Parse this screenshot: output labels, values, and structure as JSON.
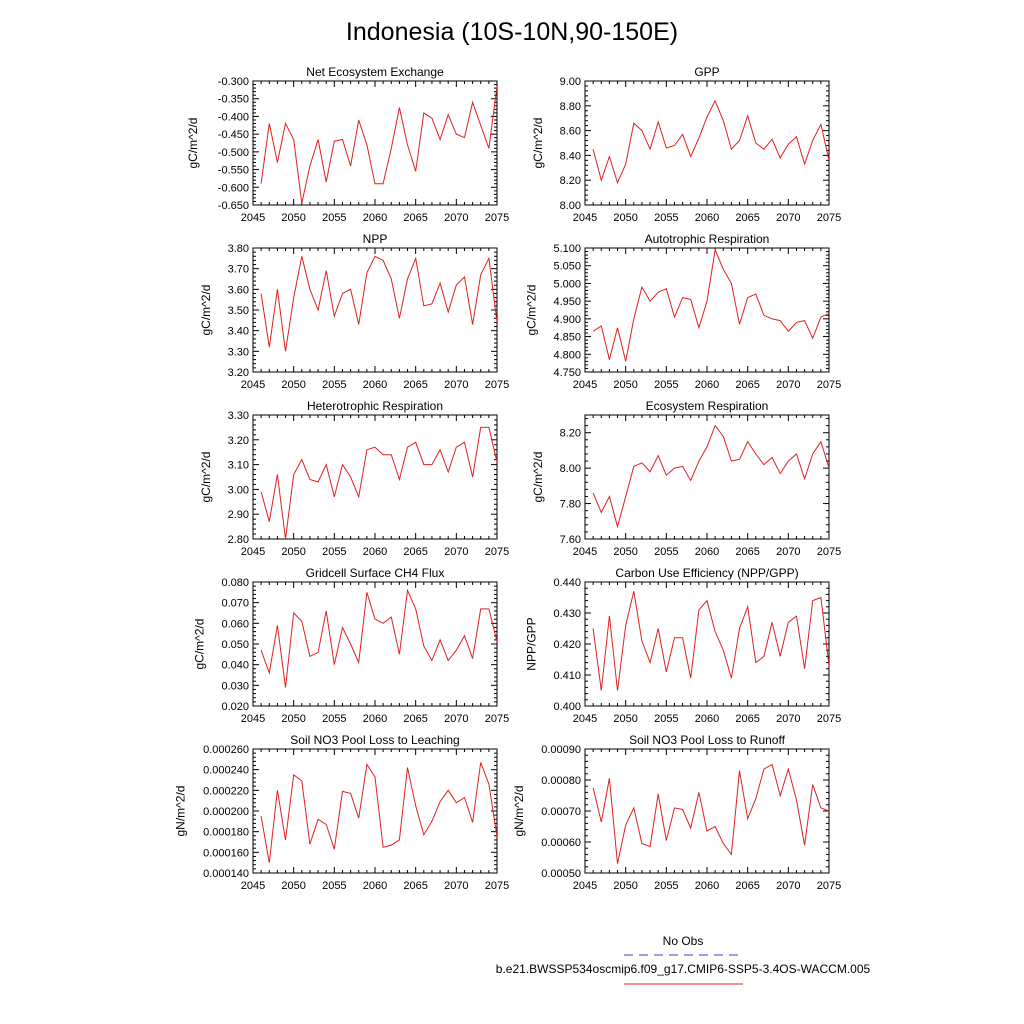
{
  "title": "Indonesia (10S-10N,90-150E)",
  "legend": {
    "entries": [
      {
        "label": "No Obs",
        "color": "#3344cc",
        "style": "dashed"
      },
      {
        "label": "b.e21.BWSSP534oscmip6.f09_g17.CMIP6-SSP5-3.4OS-WACCM.005",
        "color": "#e02020",
        "style": "solid"
      }
    ]
  },
  "chart_data": [
    {
      "type": "line",
      "title": "Net Ecosystem Exchange",
      "ylabel": "gC/m^2/d",
      "xlim": [
        2045,
        2075
      ],
      "ylim": [
        -0.65,
        -0.3
      ],
      "xticks": [
        "2045",
        "2050",
        "2055",
        "2060",
        "2065",
        "2070",
        "2075"
      ],
      "yticks": [
        "-0.650",
        "-0.600",
        "-0.550",
        "-0.500",
        "-0.450",
        "-0.400",
        "-0.350",
        "-0.300"
      ],
      "x": [
        2046,
        2047,
        2048,
        2049,
        2050,
        2051,
        2052,
        2053,
        2054,
        2055,
        2056,
        2057,
        2058,
        2059,
        2060,
        2061,
        2062,
        2063,
        2064,
        2065,
        2066,
        2067,
        2068,
        2069,
        2070,
        2071,
        2072,
        2073,
        2074,
        2075
      ],
      "values": [
        -0.59,
        -0.42,
        -0.53,
        -0.42,
        -0.465,
        -0.645,
        -0.54,
        -0.465,
        -0.585,
        -0.47,
        -0.465,
        -0.54,
        -0.41,
        -0.48,
        -0.59,
        -0.59,
        -0.49,
        -0.375,
        -0.48,
        -0.555,
        -0.39,
        -0.405,
        -0.465,
        -0.395,
        -0.45,
        -0.46,
        -0.36,
        -0.425,
        -0.49,
        -0.315
      ],
      "color": "#e02020"
    },
    {
      "type": "line",
      "title": "GPP",
      "ylabel": "gC/m^2/d",
      "xlim": [
        2045,
        2075
      ],
      "ylim": [
        8.0,
        9.0
      ],
      "xticks": [
        "2045",
        "2050",
        "2055",
        "2060",
        "2065",
        "2070",
        "2075"
      ],
      "yticks": [
        "8.00",
        "8.20",
        "8.40",
        "8.60",
        "8.80",
        "9.00"
      ],
      "x": [
        2046,
        2047,
        2048,
        2049,
        2050,
        2051,
        2052,
        2053,
        2054,
        2055,
        2056,
        2057,
        2058,
        2059,
        2060,
        2061,
        2062,
        2063,
        2064,
        2065,
        2066,
        2067,
        2068,
        2069,
        2070,
        2071,
        2072,
        2073,
        2074,
        2075
      ],
      "values": [
        8.45,
        8.2,
        8.39,
        8.18,
        8.33,
        8.66,
        8.6,
        8.45,
        8.67,
        8.46,
        8.48,
        8.57,
        8.39,
        8.54,
        8.71,
        8.84,
        8.68,
        8.45,
        8.52,
        8.72,
        8.5,
        8.45,
        8.53,
        8.38,
        8.49,
        8.55,
        8.33,
        8.52,
        8.65,
        8.36
      ],
      "color": "#e02020"
    },
    {
      "type": "line",
      "title": "NPP",
      "ylabel": "gC/m^2/d",
      "xlim": [
        2045,
        2075
      ],
      "ylim": [
        3.2,
        3.8
      ],
      "xticks": [
        "2045",
        "2050",
        "2055",
        "2060",
        "2065",
        "2070",
        "2075"
      ],
      "yticks": [
        "3.20",
        "3.30",
        "3.40",
        "3.50",
        "3.60",
        "3.70",
        "3.80"
      ],
      "x": [
        2046,
        2047,
        2048,
        2049,
        2050,
        2051,
        2052,
        2053,
        2054,
        2055,
        2056,
        2057,
        2058,
        2059,
        2060,
        2061,
        2062,
        2063,
        2064,
        2065,
        2066,
        2067,
        2068,
        2069,
        2070,
        2071,
        2072,
        2073,
        2074,
        2075
      ],
      "values": [
        3.58,
        3.32,
        3.6,
        3.3,
        3.56,
        3.76,
        3.6,
        3.5,
        3.69,
        3.47,
        3.58,
        3.6,
        3.43,
        3.68,
        3.76,
        3.74,
        3.65,
        3.46,
        3.65,
        3.75,
        3.52,
        3.53,
        3.63,
        3.49,
        3.62,
        3.66,
        3.43,
        3.67,
        3.75,
        3.44
      ],
      "color": "#e02020"
    },
    {
      "type": "line",
      "title": "Autotrophic Respiration",
      "ylabel": "gC/m^2/d",
      "xlim": [
        2045,
        2075
      ],
      "ylim": [
        4.75,
        5.1
      ],
      "xticks": [
        "2045",
        "2050",
        "2055",
        "2060",
        "2065",
        "2070",
        "2075"
      ],
      "yticks": [
        "4.750",
        "4.800",
        "4.850",
        "4.900",
        "4.950",
        "5.000",
        "5.050",
        "5.100"
      ],
      "x": [
        2046,
        2047,
        2048,
        2049,
        2050,
        2051,
        2052,
        2053,
        2054,
        2055,
        2056,
        2057,
        2058,
        2059,
        2060,
        2061,
        2062,
        2063,
        2064,
        2065,
        2066,
        2067,
        2068,
        2069,
        2070,
        2071,
        2072,
        2073,
        2074,
        2075
      ],
      "values": [
        4.865,
        4.88,
        4.785,
        4.875,
        4.78,
        4.9,
        4.99,
        4.95,
        4.975,
        4.985,
        4.905,
        4.96,
        4.955,
        4.875,
        4.95,
        5.095,
        5.04,
        5.0,
        4.885,
        4.96,
        4.97,
        4.91,
        4.9,
        4.895,
        4.865,
        4.89,
        4.895,
        4.845,
        4.905,
        4.915
      ],
      "color": "#e02020"
    },
    {
      "type": "line",
      "title": "Heterotrophic Respiration",
      "ylabel": "gC/m^2/d",
      "xlim": [
        2045,
        2075
      ],
      "ylim": [
        2.8,
        3.3
      ],
      "xticks": [
        "2045",
        "2050",
        "2055",
        "2060",
        "2065",
        "2070",
        "2075"
      ],
      "yticks": [
        "2.80",
        "2.90",
        "3.00",
        "3.10",
        "3.20",
        "3.30"
      ],
      "x": [
        2046,
        2047,
        2048,
        2049,
        2050,
        2051,
        2052,
        2053,
        2054,
        2055,
        2056,
        2057,
        2058,
        2059,
        2060,
        2061,
        2062,
        2063,
        2064,
        2065,
        2066,
        2067,
        2068,
        2069,
        2070,
        2071,
        2072,
        2073,
        2074,
        2075
      ],
      "values": [
        2.99,
        2.87,
        3.06,
        2.8,
        3.06,
        3.12,
        3.04,
        3.03,
        3.1,
        2.97,
        3.1,
        3.05,
        2.97,
        3.16,
        3.17,
        3.14,
        3.14,
        3.04,
        3.17,
        3.19,
        3.1,
        3.1,
        3.16,
        3.07,
        3.17,
        3.19,
        3.05,
        3.25,
        3.25,
        3.11
      ],
      "color": "#e02020"
    },
    {
      "type": "line",
      "title": "Ecosystem Respiration",
      "ylabel": "gC/m^2/d",
      "xlim": [
        2045,
        2075
      ],
      "ylim": [
        7.6,
        8.3
      ],
      "xticks": [
        "2045",
        "2050",
        "2055",
        "2060",
        "2065",
        "2070",
        "2075"
      ],
      "yticks": [
        "7.60",
        "7.80",
        "8.00",
        "8.20"
      ],
      "x": [
        2046,
        2047,
        2048,
        2049,
        2050,
        2051,
        2052,
        2053,
        2054,
        2055,
        2056,
        2057,
        2058,
        2059,
        2060,
        2061,
        2062,
        2063,
        2064,
        2065,
        2066,
        2067,
        2068,
        2069,
        2070,
        2071,
        2072,
        2073,
        2074,
        2075
      ],
      "values": [
        7.86,
        7.75,
        7.84,
        7.67,
        7.84,
        8.01,
        8.03,
        7.98,
        8.07,
        7.96,
        8.0,
        8.01,
        7.93,
        8.04,
        8.12,
        8.24,
        8.18,
        8.04,
        8.05,
        8.15,
        8.08,
        8.02,
        8.06,
        7.97,
        8.04,
        8.08,
        7.94,
        8.08,
        8.15,
        8.0
      ],
      "color": "#e02020"
    },
    {
      "type": "line",
      "title": "Gridcell Surface CH4 Flux",
      "ylabel": "gC/m^2/d",
      "xlim": [
        2045,
        2075
      ],
      "ylim": [
        0.02,
        0.08
      ],
      "xticks": [
        "2045",
        "2050",
        "2055",
        "2060",
        "2065",
        "2070",
        "2075"
      ],
      "yticks": [
        "0.020",
        "0.030",
        "0.040",
        "0.050",
        "0.060",
        "0.070",
        "0.080"
      ],
      "x": [
        2046,
        2047,
        2048,
        2049,
        2050,
        2051,
        2052,
        2053,
        2054,
        2055,
        2056,
        2057,
        2058,
        2059,
        2060,
        2061,
        2062,
        2063,
        2064,
        2065,
        2066,
        2067,
        2068,
        2069,
        2070,
        2071,
        2072,
        2073,
        2074,
        2075
      ],
      "values": [
        0.047,
        0.036,
        0.059,
        0.029,
        0.065,
        0.061,
        0.044,
        0.046,
        0.066,
        0.04,
        0.058,
        0.05,
        0.041,
        0.075,
        0.062,
        0.06,
        0.063,
        0.045,
        0.076,
        0.067,
        0.049,
        0.042,
        0.052,
        0.042,
        0.047,
        0.054,
        0.043,
        0.067,
        0.067,
        0.051
      ],
      "color": "#e02020"
    },
    {
      "type": "line",
      "title": "Carbon Use Efficiency (NPP/GPP)",
      "ylabel": "NPP/GPP",
      "xlim": [
        2045,
        2075
      ],
      "ylim": [
        0.4,
        0.44
      ],
      "xticks": [
        "2045",
        "2050",
        "2055",
        "2060",
        "2065",
        "2070",
        "2075"
      ],
      "yticks": [
        "0.400",
        "0.410",
        "0.420",
        "0.430",
        "0.440"
      ],
      "x": [
        2046,
        2047,
        2048,
        2049,
        2050,
        2051,
        2052,
        2053,
        2054,
        2055,
        2056,
        2057,
        2058,
        2059,
        2060,
        2061,
        2062,
        2063,
        2064,
        2065,
        2066,
        2067,
        2068,
        2069,
        2070,
        2071,
        2072,
        2073,
        2074,
        2075
      ],
      "values": [
        0.425,
        0.405,
        0.429,
        0.405,
        0.426,
        0.437,
        0.421,
        0.414,
        0.425,
        0.411,
        0.422,
        0.422,
        0.409,
        0.431,
        0.434,
        0.424,
        0.418,
        0.409,
        0.425,
        0.432,
        0.414,
        0.416,
        0.427,
        0.416,
        0.427,
        0.429,
        0.412,
        0.434,
        0.435,
        0.413
      ],
      "color": "#e02020"
    },
    {
      "type": "line",
      "title": "Soil NO3 Pool Loss to Leaching",
      "ylabel": "gN/m^2/d",
      "xlim": [
        2045,
        2075
      ],
      "ylim": [
        0.00014,
        0.00026
      ],
      "xticks": [
        "2045",
        "2050",
        "2055",
        "2060",
        "2065",
        "2070",
        "2075"
      ],
      "yticks": [
        "0.000140",
        "0.000160",
        "0.000180",
        "0.000200",
        "0.000220",
        "0.000240",
        "0.000260"
      ],
      "x": [
        2046,
        2047,
        2048,
        2049,
        2050,
        2051,
        2052,
        2053,
        2054,
        2055,
        2056,
        2057,
        2058,
        2059,
        2060,
        2061,
        2062,
        2063,
        2064,
        2065,
        2066,
        2067,
        2068,
        2069,
        2070,
        2071,
        2072,
        2073,
        2074,
        2075
      ],
      "values": [
        0.000195,
        0.00015,
        0.00022,
        0.000172,
        0.000235,
        0.000229,
        0.000168,
        0.000192,
        0.000187,
        0.000163,
        0.000219,
        0.000217,
        0.000193,
        0.000245,
        0.000233,
        0.000165,
        0.000167,
        0.000172,
        0.000242,
        0.000205,
        0.000177,
        0.00019,
        0.000209,
        0.00022,
        0.000208,
        0.000213,
        0.000189,
        0.000247,
        0.000226,
        0.000175
      ],
      "color": "#e02020"
    },
    {
      "type": "line",
      "title": "Soil NO3 Pool Loss to Runoff",
      "ylabel": "gN/m^2/d",
      "xlim": [
        2045,
        2075
      ],
      "ylim": [
        0.0005,
        0.0009
      ],
      "xticks": [
        "2045",
        "2050",
        "2055",
        "2060",
        "2065",
        "2070",
        "2075"
      ],
      "yticks": [
        "0.00050",
        "0.00060",
        "0.00070",
        "0.00080",
        "0.00090"
      ],
      "x": [
        2046,
        2047,
        2048,
        2049,
        2050,
        2051,
        2052,
        2053,
        2054,
        2055,
        2056,
        2057,
        2058,
        2059,
        2060,
        2061,
        2062,
        2063,
        2064,
        2065,
        2066,
        2067,
        2068,
        2069,
        2070,
        2071,
        2072,
        2073,
        2074,
        2075
      ],
      "values": [
        0.000775,
        0.000665,
        0.000805,
        0.00053,
        0.000655,
        0.00071,
        0.000595,
        0.000585,
        0.000755,
        0.000605,
        0.00071,
        0.000705,
        0.000645,
        0.00076,
        0.000635,
        0.00065,
        0.000595,
        0.00056,
        0.00083,
        0.000675,
        0.00074,
        0.000835,
        0.00085,
        0.00075,
        0.000835,
        0.000735,
        0.00059,
        0.000785,
        0.00071,
        0.0007
      ],
      "color": "#e02020"
    }
  ]
}
